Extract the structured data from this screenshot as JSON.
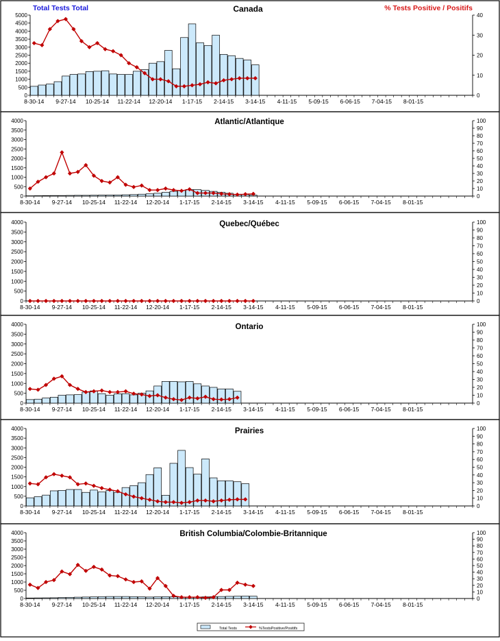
{
  "header": {
    "left_title": "Total Tests Total",
    "right_title": "% Tests Positive / Positifs",
    "left_color": "#1a1adc",
    "right_color": "#d81818"
  },
  "legend": {
    "bars_label": "Total Tests",
    "line_label": "%TestsPositive/Positifs"
  },
  "colors": {
    "bar_fill": "#cce9fb",
    "bar_stroke": "#000000",
    "line": "#c00000"
  },
  "chart_data": [
    {
      "type": "bar+line",
      "title": "Canada",
      "x_tick_labels": [
        "8-30-14",
        "9-27-14",
        "10-25-14",
        "11-22-14",
        "12-20-14",
        "1-17-15",
        "2-14-15",
        "3-14-15",
        "4-11-15",
        "5-09-15",
        "6-06-15",
        "7-04-15",
        "8-01-15"
      ],
      "y_left": {
        "min": 0,
        "max": 5000,
        "step": 500
      },
      "y_right": {
        "min": 0,
        "max": 40,
        "step": 10
      },
      "series": [
        {
          "name": "Total Tests",
          "axis": "left",
          "values": [
            560,
            640,
            700,
            850,
            1200,
            1300,
            1330,
            1480,
            1500,
            1530,
            1330,
            1300,
            1300,
            1500,
            1600,
            2000,
            2100,
            2800,
            1650,
            3600,
            4450,
            3280,
            3100,
            3750,
            2550,
            2470,
            2300,
            2200,
            1900
          ]
        },
        {
          "name": "%TestsPositive/Positifs",
          "axis": "right",
          "values": [
            26,
            25,
            33,
            37,
            38,
            33,
            27,
            24,
            26,
            23,
            22,
            20,
            16,
            14,
            11,
            8,
            8,
            7,
            4.5,
            4.5,
            5,
            5.5,
            6.5,
            6,
            7.5,
            8,
            8.5,
            8.5,
            8.5
          ]
        }
      ]
    },
    {
      "type": "bar+line",
      "title": "Atlantic/Atlantique",
      "x_tick_labels": [
        "8-30-14",
        "9-27-14",
        "10-25-14",
        "11-22-14",
        "12-20-14",
        "1-17-15",
        "2-14-15",
        "3-14-15",
        "4-11-15",
        "5-09-15",
        "6-06-15",
        "7-04-15",
        "8-01-15"
      ],
      "y_left": {
        "min": 0,
        "max": 4000,
        "step": 500
      },
      "y_right": {
        "min": 0,
        "max": 100,
        "step": 10
      },
      "series": [
        {
          "name": "Total Tests",
          "axis": "left",
          "values": [
            15,
            20,
            25,
            30,
            30,
            35,
            40,
            40,
            45,
            50,
            55,
            60,
            70,
            80,
            100,
            120,
            150,
            200,
            250,
            300,
            350,
            340,
            300,
            250,
            200,
            150,
            100,
            80,
            50
          ]
        },
        {
          "name": "%TestsPositive/Positifs",
          "axis": "right",
          "values": [
            10,
            19,
            25,
            30,
            58,
            30,
            32,
            41,
            27,
            20,
            18,
            25,
            15,
            12,
            14,
            8,
            8,
            10,
            8,
            7,
            9,
            4,
            4,
            4,
            3,
            2.5,
            2,
            2.5,
            3
          ]
        }
      ]
    },
    {
      "type": "bar+line",
      "title": "Quebec/Québec",
      "x_tick_labels": [
        "8-30-14",
        "9-27-14",
        "10-25-14",
        "11-22-14",
        "12-20-14",
        "1-17-15",
        "2-14-15",
        "3-14-15",
        "4-11-15",
        "5-09-15",
        "6-06-15",
        "7-04-15",
        "8-01-15"
      ],
      "y_left": {
        "min": 0,
        "max": 4000,
        "step": 500
      },
      "y_right": {
        "min": 0,
        "max": 100,
        "step": 10
      },
      "series": [
        {
          "name": "Total Tests",
          "axis": "left",
          "values": [
            0,
            0,
            0,
            0,
            0,
            0,
            0,
            0,
            0,
            0,
            0,
            0,
            0,
            0,
            0,
            0,
            0,
            0,
            0,
            0,
            0,
            0,
            0,
            0,
            0,
            0,
            0,
            0,
            0
          ]
        },
        {
          "name": "%TestsPositive/Positifs",
          "axis": "right",
          "values": [
            0,
            0,
            0,
            0,
            0,
            0,
            0,
            0,
            0,
            0,
            0,
            0,
            0,
            0,
            0,
            0,
            0,
            0,
            0,
            0,
            0,
            0,
            0,
            0,
            0,
            0,
            0,
            0,
            0
          ]
        }
      ]
    },
    {
      "type": "bar+line",
      "title": "Ontario",
      "x_tick_labels": [
        "8-30-14",
        "9-27-14",
        "10-25-14",
        "11-22-14",
        "12-20-14",
        "1-17-15",
        "2-14-15",
        "3-14-15",
        "4-11-15",
        "5-09-15",
        "6-06-15",
        "7-04-15",
        "8-01-15"
      ],
      "y_left": {
        "min": 0,
        "max": 4000,
        "step": 500
      },
      "y_right": {
        "min": 0,
        "max": 100,
        "step": 10
      },
      "series": [
        {
          "name": "Total Tests",
          "axis": "left",
          "values": [
            180,
            200,
            260,
            300,
            400,
            420,
            430,
            560,
            620,
            480,
            400,
            470,
            480,
            420,
            500,
            620,
            870,
            1100,
            1100,
            1080,
            1100,
            980,
            870,
            800,
            720,
            720,
            600
          ]
        },
        {
          "name": "%TestsPositive/Positifs",
          "axis": "right",
          "values": [
            18,
            17,
            23,
            31,
            34,
            23,
            18,
            14,
            15,
            16,
            14,
            14,
            15,
            12,
            11,
            9,
            10,
            7,
            5,
            4,
            7,
            6,
            8,
            5,
            4.5,
            5,
            7
          ]
        }
      ]
    },
    {
      "type": "bar+line",
      "title": "Prairies",
      "x_tick_labels": [
        "8-30-14",
        "9-27-14",
        "10-25-14",
        "11-22-14",
        "12-20-14",
        "1-17-15",
        "2-14-15",
        "3-14-15",
        "4-11-15",
        "5-09-15",
        "6-06-15",
        "7-04-15",
        "8-01-15"
      ],
      "y_left": {
        "min": 0,
        "max": 4000,
        "step": 500
      },
      "y_right": {
        "min": 0,
        "max": 100,
        "step": 10
      },
      "series": [
        {
          "name": "Total Tests",
          "axis": "left",
          "values": [
            420,
            480,
            560,
            780,
            800,
            850,
            850,
            700,
            820,
            720,
            800,
            700,
            950,
            1050,
            1200,
            1620,
            1970,
            550,
            2200,
            2870,
            1980,
            1640,
            2430,
            1450,
            1300,
            1300,
            1250,
            1150
          ]
        },
        {
          "name": "%TestsPositive/Positifs",
          "axis": "right",
          "values": [
            29,
            28,
            37,
            41,
            39,
            37,
            28,
            29,
            26,
            23,
            21,
            19,
            15,
            12,
            10,
            8,
            6,
            5,
            5,
            4,
            5,
            7,
            7,
            6,
            7,
            8,
            8.5,
            8.5
          ]
        }
      ]
    },
    {
      "type": "bar+line",
      "title": "British Columbia/Colombie-Britannique",
      "x_tick_labels": [
        "8-30-14",
        "9-27-14",
        "10-25-14",
        "11-22-14",
        "12-20-14",
        "1-17-15",
        "2-14-15",
        "3-14-15",
        "4-11-15",
        "5-09-15",
        "6-06-15",
        "7-04-15",
        "8-01-15"
      ],
      "y_left": {
        "min": 0,
        "max": 4000,
        "step": 500
      },
      "y_right": {
        "min": 0,
        "max": 100,
        "step": 10
      },
      "series": [
        {
          "name": "Total Tests",
          "axis": "left",
          "values": [
            30,
            35,
            40,
            45,
            60,
            70,
            80,
            90,
            100,
            110,
            120,
            120,
            120,
            110,
            100,
            90,
            100,
            110,
            100,
            90,
            80,
            90,
            100,
            110,
            120,
            130,
            140,
            150,
            140
          ]
        },
        {
          "name": "%TestsPositive/Positifs",
          "axis": "right",
          "values": [
            21,
            16,
            25,
            28,
            41,
            37,
            51,
            42,
            48,
            44,
            35,
            34,
            29,
            25,
            26,
            15,
            31,
            19,
            4,
            2,
            2,
            2,
            1,
            2,
            13,
            13,
            24,
            21,
            19
          ]
        }
      ]
    }
  ]
}
